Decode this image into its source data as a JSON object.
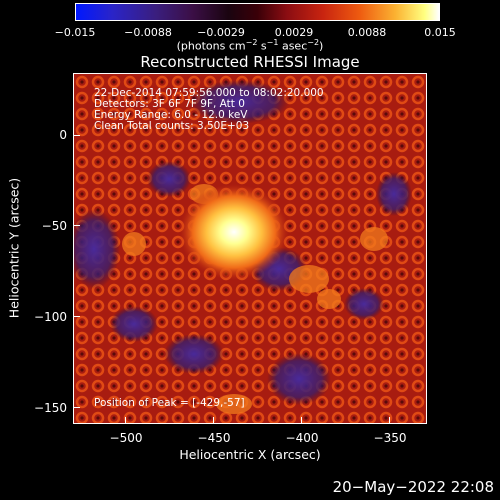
{
  "colorbar": {
    "ticks": [
      "−0.015",
      "−0.0088",
      "−0.0029",
      "0.0029",
      "0.0088",
      "0.015"
    ],
    "units_prefix": "(photons cm",
    "units_sup1": "−2",
    "units_mid1": " s",
    "units_sup2": "−1",
    "units_mid2": " asec",
    "units_sup3": "−2",
    "units_suffix": ")"
  },
  "title": "Reconstructed RHESSI Image",
  "info": {
    "line1": "22-Dec-2014 07:59:56.000 to 08:02:20.000",
    "line2": "Detectors: 3F 6F 7F 9F, Att 0",
    "line3": "Energy Range: 6.0 - 12.0 keV",
    "line4": "Clean     Total counts: 3.50E+03"
  },
  "peak": "Position of Peak = [-429,-57]",
  "x_axis": {
    "label": "Heliocentric X (arcsec)",
    "ticks": [
      "−500",
      "−450",
      "−400",
      "−350"
    ],
    "values": [
      -500,
      -450,
      -400,
      -350
    ],
    "range": [
      -527,
      -326
    ]
  },
  "y_axis": {
    "label": "Heliocentric Y (arcsec)",
    "ticks": [
      "0",
      "−50",
      "−100",
      "−150"
    ],
    "values": [
      0,
      -50,
      -100,
      -150
    ],
    "range": [
      -158,
      43
    ]
  },
  "timestamp": "20−May−2022 22:08",
  "colors": {
    "background": "#000000",
    "text": "#ffffff"
  }
}
